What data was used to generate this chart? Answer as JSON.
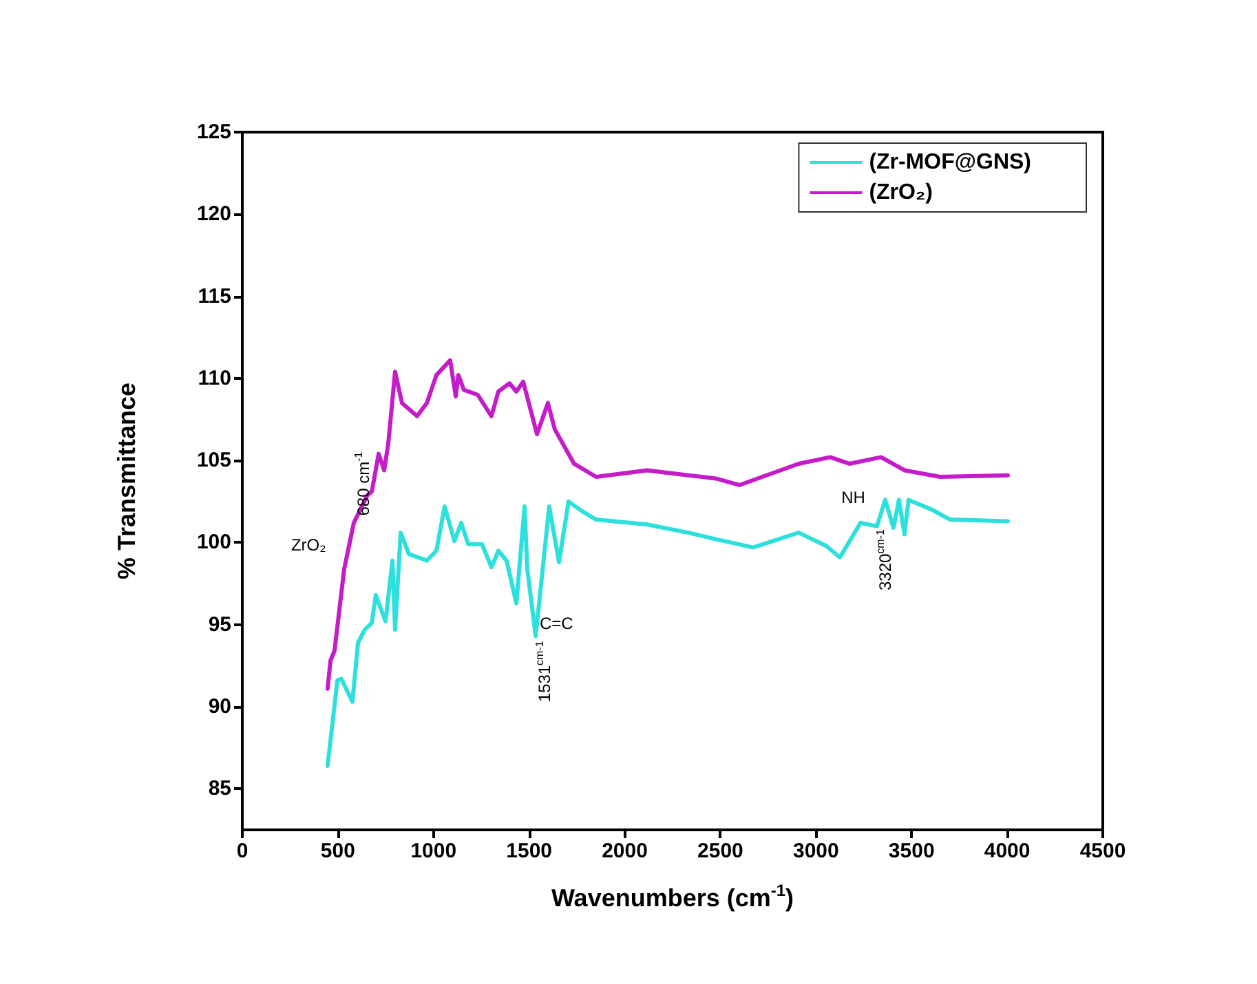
{
  "chart_data": {
    "type": "line",
    "xlabel": "Wavenumbers (cm$^{-1}$)",
    "ylabel": "% Transmittance",
    "xlim": [
      0,
      4500
    ],
    "xticks": [
      0,
      500,
      1000,
      1500,
      2000,
      2500,
      3000,
      3500,
      4000,
      4500
    ],
    "ylim": [
      82.5,
      125
    ],
    "yticks": [
      85,
      90,
      95,
      100,
      105,
      110,
      115,
      120,
      125
    ],
    "grid": false,
    "legend": "top right",
    "marker": "none",
    "line_style": "solid",
    "series": [
      {
        "name": "(Zr-MOF@GNS)",
        "color": "#2ee0dc",
        "x": [
          446,
          497,
          518,
          576,
          605,
          641,
          677,
          698,
          749,
          785,
          799,
          828,
          871,
          965,
          1015,
          1058,
          1109,
          1145,
          1181,
          1253,
          1303,
          1339,
          1382,
          1433,
          1476,
          1490,
          1534,
          1605,
          1656,
          1706,
          1778,
          1850,
          2117,
          2333,
          2477,
          2671,
          2909,
          3053,
          3125,
          3233,
          3319,
          3362,
          3405,
          3434,
          3463,
          3484,
          3607,
          3701,
          4003
        ],
        "values": [
          86.4,
          91.6,
          91.7,
          90.3,
          93.9,
          94.7,
          95.1,
          96.8,
          95.2,
          98.9,
          94.7,
          100.6,
          99.3,
          98.9,
          99.5,
          102.2,
          100.1,
          101.2,
          99.9,
          99.9,
          98.5,
          99.5,
          98.9,
          96.3,
          102.2,
          98.4,
          94.3,
          102.2,
          98.8,
          102.5,
          101.9,
          101.4,
          101.1,
          100.6,
          100.2,
          99.7,
          100.6,
          99.8,
          99.1,
          101.2,
          101.0,
          102.6,
          100.9,
          102.6,
          100.5,
          102.6,
          102.0,
          101.4,
          101.3
        ]
      },
      {
        "name": "(ZrO₂)",
        "color": "#c41cc9",
        "x": [
          446,
          461,
          482,
          533,
          583,
          655,
          677,
          713,
          742,
          763,
          799,
          835,
          914,
          965,
          1015,
          1087,
          1116,
          1130,
          1159,
          1231,
          1303,
          1339,
          1397,
          1433,
          1469,
          1541,
          1598,
          1634,
          1735,
          1850,
          2117,
          2333,
          2477,
          2599,
          2909,
          3074,
          3175,
          3340,
          3463,
          3650,
          4003
        ],
        "values": [
          91.1,
          92.8,
          93.4,
          98.4,
          101.2,
          102.9,
          103.1,
          105.4,
          104.4,
          106.0,
          110.4,
          108.5,
          107.7,
          108.5,
          110.2,
          111.1,
          108.9,
          110.2,
          109.3,
          109.0,
          107.7,
          109.2,
          109.7,
          109.2,
          109.8,
          106.6,
          108.5,
          106.9,
          104.8,
          104.0,
          104.4,
          104.1,
          103.9,
          103.5,
          104.8,
          105.2,
          104.8,
          105.2,
          104.4,
          104.0,
          104.1
        ]
      }
    ],
    "annotations": [
      "ZrO₂",
      "680 cm$^{-1}$",
      "C=C",
      "1531$^{cm-1}$",
      "NH",
      "3320$^{cm-1}$"
    ]
  }
}
